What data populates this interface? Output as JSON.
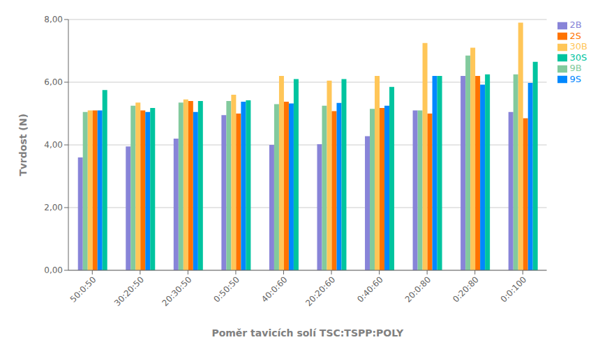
{
  "chart_data": {
    "type": "bar",
    "xlabel": "Poměr tavicích solí TSC:TSPP:POLY",
    "ylabel": "Tvrdost (N)",
    "categories": [
      "50:0:50",
      "30:20:50",
      "20:30:50",
      "0:50:50",
      "40:0:60",
      "20:20:60",
      "0:40:60",
      "20:0:80",
      "0:20:80",
      "0:0:100"
    ],
    "series": [
      {
        "name": "2B",
        "color": "#8884d8",
        "values": [
          3.6,
          3.95,
          4.2,
          4.95,
          4.0,
          4.02,
          4.28,
          5.1,
          6.2,
          5.05
        ]
      },
      {
        "name": "9B",
        "color": "#82ca9d",
        "values": [
          5.05,
          5.25,
          5.35,
          5.4,
          5.3,
          5.25,
          5.15,
          5.1,
          6.85,
          6.25
        ]
      },
      {
        "name": "30B",
        "color": "#ffc658",
        "values": [
          5.1,
          5.35,
          5.45,
          5.6,
          6.2,
          6.05,
          6.2,
          7.25,
          7.1,
          7.9
        ]
      },
      {
        "name": "2S",
        "color": "#ff7300",
        "values": [
          5.1,
          5.1,
          5.4,
          5.0,
          5.38,
          5.08,
          5.18,
          5.0,
          6.2,
          4.85
        ]
      },
      {
        "name": "9S",
        "color": "#0088fe",
        "values": [
          5.1,
          5.05,
          5.05,
          5.38,
          5.32,
          5.34,
          5.25,
          6.2,
          5.92,
          5.98
        ]
      },
      {
        "name": "30S",
        "color": "#00c49f",
        "values": [
          5.75,
          5.18,
          5.4,
          5.42,
          6.1,
          6.1,
          5.85,
          6.2,
          6.25,
          6.65
        ]
      }
    ],
    "ylim": [
      0,
      8
    ],
    "yticks": [
      {
        "value": 0,
        "label": "0,00"
      },
      {
        "value": 2,
        "label": "2,00"
      },
      {
        "value": 4,
        "label": "4,00"
      },
      {
        "value": 6,
        "label": "6,00"
      },
      {
        "value": 8,
        "label": "8,00"
      }
    ],
    "grid": true,
    "legend": "right"
  }
}
